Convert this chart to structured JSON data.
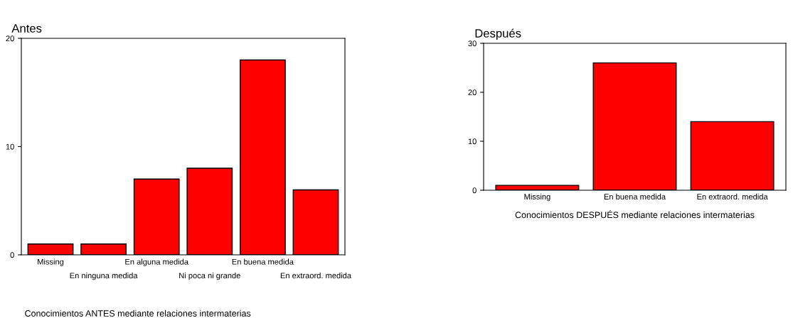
{
  "chart_data": [
    {
      "type": "bar",
      "title": "Antes",
      "xlabel": "Conocimientos ANTES mediante relaciones intermaterias",
      "categories": [
        "Missing",
        "En ninguna medida",
        "En alguna medida",
        "Ni poca ni grande",
        "En buena medida",
        "En extraord. medida"
      ],
      "values": [
        1,
        1,
        7,
        8,
        18,
        6
      ],
      "color": "#ff0000",
      "ylim": [
        0,
        20
      ],
      "yticks": [
        0,
        10,
        20
      ],
      "grid": false,
      "legend": false
    },
    {
      "type": "bar",
      "title": "Después",
      "xlabel": "Conocimientos DESPUÉS mediante relaciones intermaterias",
      "categories": [
        "Missing",
        "En buena medida",
        "En extraord. medida"
      ],
      "values": [
        1,
        26,
        14
      ],
      "color": "#ff0000",
      "ylim": [
        0,
        30
      ],
      "yticks": [
        0,
        10,
        20,
        30
      ],
      "grid": false,
      "legend": false
    }
  ]
}
